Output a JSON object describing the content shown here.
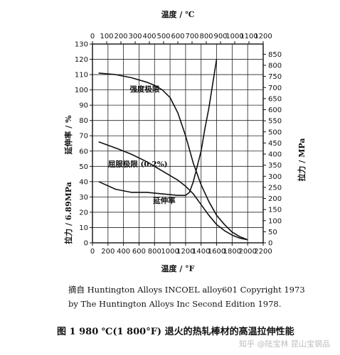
{
  "chart_data": {
    "type": "line",
    "axes": {
      "bottom": {
        "label": "温度 / °F",
        "min": 0,
        "max": 2200,
        "ticks": [
          0,
          200,
          400,
          600,
          800,
          1000,
          1200,
          1400,
          1600,
          1800,
          2000,
          2200
        ]
      },
      "top": {
        "label": "温度 / ℃",
        "min": 0,
        "max": 1200,
        "ticks": [
          0,
          100,
          200,
          300,
          400,
          500,
          600,
          700,
          800,
          900,
          1000,
          1100,
          1200
        ]
      },
      "left": {
        "label_upper": "延伸率 / %",
        "label_lower": "拉力 / 6.89MPa",
        "min": 0,
        "max": 130,
        "ticks": [
          0,
          10,
          20,
          30,
          40,
          50,
          60,
          70,
          80,
          90,
          100,
          110,
          120,
          130
        ]
      },
      "right": {
        "label": "拉力 / MPa",
        "min": 0,
        "max": 896,
        "ticks": [
          0,
          50,
          100,
          150,
          200,
          250,
          300,
          350,
          400,
          450,
          500,
          550,
          600,
          650,
          700,
          750,
          800,
          850
        ]
      }
    },
    "grid": true,
    "series": [
      {
        "name": "强度极限",
        "x": [
          80,
          300,
          500,
          700,
          800,
          900,
          1000,
          1100,
          1200,
          1300,
          1400,
          1500,
          1600,
          1700,
          1800,
          1900,
          2000
        ],
        "y": [
          111,
          110,
          108,
          105,
          103,
          100,
          95,
          85,
          70,
          52,
          38,
          27,
          18,
          12,
          7,
          4,
          2
        ]
      },
      {
        "name": "屈服极限 (0.2%)",
        "x": [
          80,
          300,
          500,
          700,
          900,
          1100,
          1200,
          1300,
          1400,
          1500,
          1600,
          1700,
          1800,
          1900,
          2000
        ],
        "y": [
          66,
          62,
          58,
          53,
          47,
          41,
          37,
          32,
          25,
          18,
          12,
          8,
          5,
          3,
          2
        ]
      },
      {
        "name": "延伸率",
        "x": [
          80,
          300,
          500,
          700,
          900,
          1100,
          1200,
          1250,
          1300,
          1400,
          1450,
          1500,
          1600
        ],
        "y": [
          40,
          35,
          33,
          33,
          32,
          31,
          31,
          33,
          40,
          60,
          75,
          88,
          120
        ]
      }
    ],
    "annotations": [
      {
        "text": "强度极限",
        "x": 480,
        "y": 99
      },
      {
        "text": "屈服极限 (0.2%)",
        "x": 200,
        "y": 50
      },
      {
        "text": "延伸率",
        "x": 780,
        "y": 26
      }
    ]
  },
  "caption": {
    "source_line1": "摘自 Huntington Alloys INCOEL alloy601 Copyright 1973",
    "source_line2": "by The Huntington Alloys Inc Second Edition 1978.",
    "figure": "图 1    980 ℃(1 800°F) 退火的热轧棒材的高温拉伸性能",
    "watermark": "知乎 @陆宝林 昆山宝钢品"
  },
  "colors": {
    "line": "#111111",
    "grid": "#222222",
    "background": "#ffffff"
  }
}
